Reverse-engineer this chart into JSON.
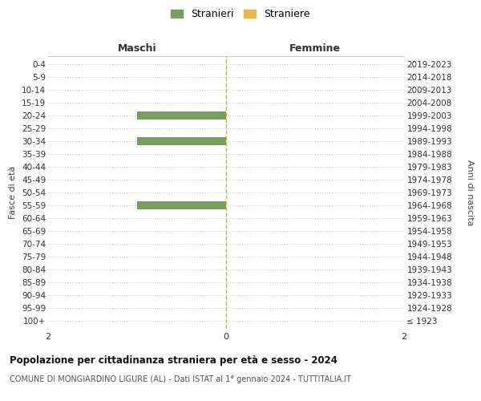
{
  "age_groups": [
    "100+",
    "95-99",
    "90-94",
    "85-89",
    "80-84",
    "75-79",
    "70-74",
    "65-69",
    "60-64",
    "55-59",
    "50-54",
    "45-49",
    "40-44",
    "35-39",
    "30-34",
    "25-29",
    "20-24",
    "15-19",
    "10-14",
    "5-9",
    "0-4"
  ],
  "birth_years": [
    "≤ 1923",
    "1924-1928",
    "1929-1933",
    "1934-1938",
    "1939-1943",
    "1944-1948",
    "1949-1953",
    "1954-1958",
    "1959-1963",
    "1964-1968",
    "1969-1973",
    "1974-1978",
    "1979-1983",
    "1984-1988",
    "1989-1993",
    "1994-1998",
    "1999-2003",
    "2004-2008",
    "2009-2013",
    "2014-2018",
    "2019-2023"
  ],
  "maschi_stranieri": [
    0,
    0,
    0,
    0,
    0,
    0,
    0,
    0,
    0,
    1,
    0,
    0,
    0,
    0,
    1,
    0,
    1,
    0,
    0,
    0,
    0
  ],
  "femmine_straniere": [
    0,
    0,
    0,
    0,
    0,
    0,
    0,
    0,
    0,
    0,
    0,
    0,
    0,
    0,
    0,
    0,
    0,
    0,
    0,
    0,
    0
  ],
  "color_maschi": "#7a9e5e",
  "color_femmine": "#e8b84b",
  "legend_maschi": "Stranieri",
  "legend_femmine": "Straniere",
  "xlim": 2,
  "title_maschi": "Maschi",
  "title_femmine": "Femmine",
  "ylabel_left": "Fasce di età",
  "ylabel_right": "Anni di nascita",
  "main_title": "Popolazione per cittadinanza straniera per età e sesso - 2024",
  "subtitle": "COMUNE DI MONGIARDINO LIGURE (AL) - Dati ISTAT al 1° gennaio 2024 - TUTTITALIA.IT",
  "bg_color": "#ffffff",
  "grid_color": "#cccccc",
  "center_line_color": "#b8b860",
  "bar_height": 0.65
}
